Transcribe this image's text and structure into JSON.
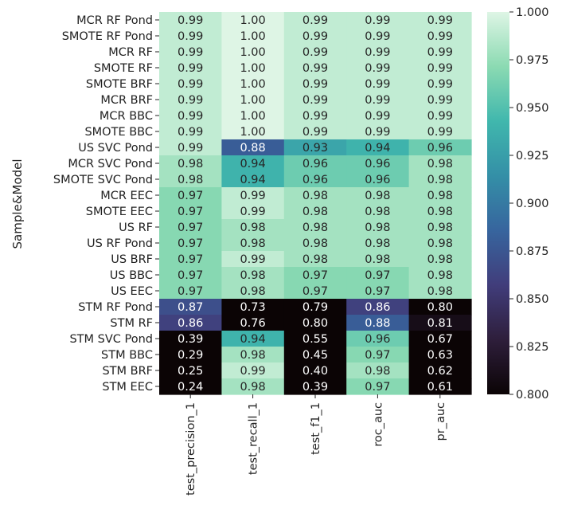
{
  "chart_data": {
    "type": "heatmap",
    "ylabel": "Sample&Model",
    "xlabel": "",
    "rows": [
      "MCR RF Pond",
      "SMOTE RF Pond",
      "MCR RF",
      "SMOTE RF",
      "SMOTE BRF",
      "MCR BRF",
      "MCR BBC",
      "SMOTE BBC",
      "US SVC Pond",
      "MCR SVC Pond",
      "SMOTE SVC Pond",
      "MCR EEC",
      "SMOTE EEC",
      "US RF",
      "US RF Pond",
      "US BRF",
      "US BBC",
      "US EEC",
      "STM RF Pond",
      "STM RF",
      "STM SVC Pond",
      "STM BBC",
      "STM BRF",
      "STM EEC"
    ],
    "columns": [
      "test_precision_1",
      "test_recall_1",
      "test_f1_1",
      "roc_auc",
      "pr_auc"
    ],
    "values": [
      [
        0.99,
        1.0,
        0.99,
        0.99,
        0.99
      ],
      [
        0.99,
        1.0,
        0.99,
        0.99,
        0.99
      ],
      [
        0.99,
        1.0,
        0.99,
        0.99,
        0.99
      ],
      [
        0.99,
        1.0,
        0.99,
        0.99,
        0.99
      ],
      [
        0.99,
        1.0,
        0.99,
        0.99,
        0.99
      ],
      [
        0.99,
        1.0,
        0.99,
        0.99,
        0.99
      ],
      [
        0.99,
        1.0,
        0.99,
        0.99,
        0.99
      ],
      [
        0.99,
        1.0,
        0.99,
        0.99,
        0.99
      ],
      [
        0.99,
        0.88,
        0.93,
        0.94,
        0.96
      ],
      [
        0.98,
        0.94,
        0.96,
        0.96,
        0.98
      ],
      [
        0.98,
        0.94,
        0.96,
        0.96,
        0.98
      ],
      [
        0.97,
        0.99,
        0.98,
        0.98,
        0.98
      ],
      [
        0.97,
        0.99,
        0.98,
        0.98,
        0.98
      ],
      [
        0.97,
        0.98,
        0.98,
        0.98,
        0.98
      ],
      [
        0.97,
        0.98,
        0.98,
        0.98,
        0.98
      ],
      [
        0.97,
        0.99,
        0.98,
        0.98,
        0.98
      ],
      [
        0.97,
        0.98,
        0.97,
        0.97,
        0.98
      ],
      [
        0.97,
        0.98,
        0.97,
        0.97,
        0.98
      ],
      [
        0.87,
        0.73,
        0.79,
        0.86,
        0.8
      ],
      [
        0.86,
        0.76,
        0.8,
        0.88,
        0.81
      ],
      [
        0.39,
        0.94,
        0.55,
        0.96,
        0.67
      ],
      [
        0.29,
        0.98,
        0.45,
        0.97,
        0.63
      ],
      [
        0.25,
        0.99,
        0.4,
        0.98,
        0.62
      ],
      [
        0.24,
        0.98,
        0.39,
        0.97,
        0.61
      ]
    ],
    "value_format": "0.00",
    "colorbar": {
      "min": 0.8,
      "max": 1.0,
      "ticks": [
        "0.800",
        "0.825",
        "0.850",
        "0.875",
        "0.900",
        "0.925",
        "0.950",
        "0.975",
        "1.000"
      ],
      "colormap": "mako",
      "colormap_stops": [
        "#0b0405",
        "#2e1e3b",
        "#413d7b",
        "#37659e",
        "#348fa7",
        "#40b7ad",
        "#8bdab2",
        "#def5e5"
      ]
    },
    "grid": false,
    "legend": "colorbar-right"
  }
}
